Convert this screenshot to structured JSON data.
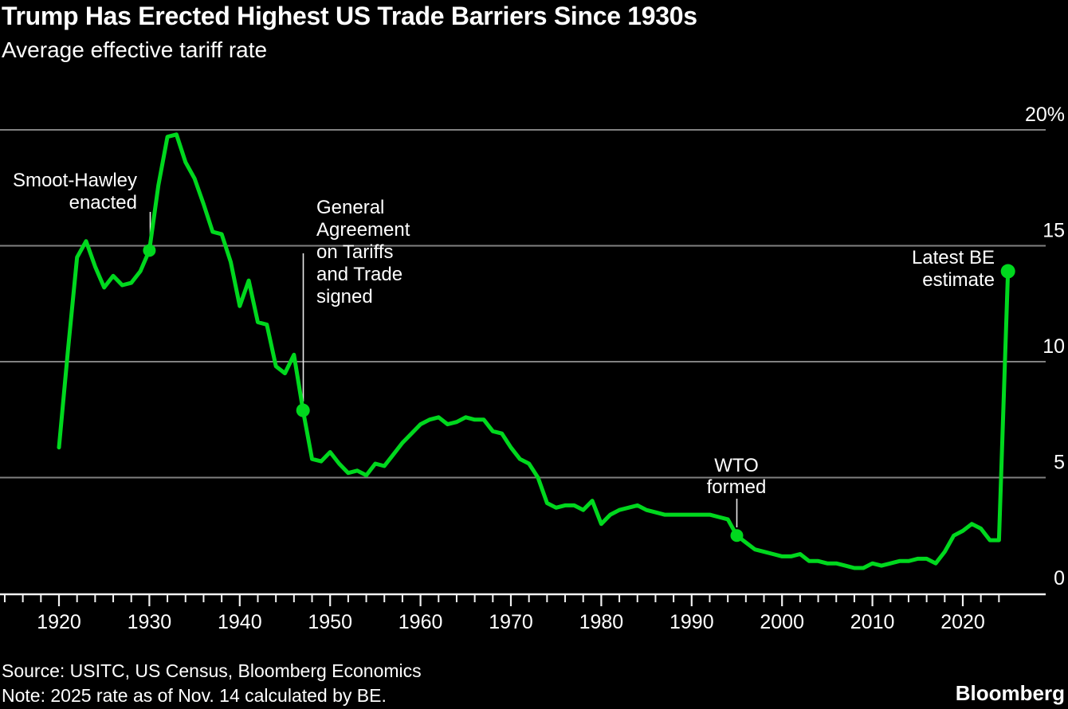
{
  "header": {
    "title": "Trump Has Erected Highest US Trade Barriers Since 1930s",
    "subtitle": "Average effective tariff rate"
  },
  "footer": {
    "source": "Source: USITC, US Census, Bloomberg Economics",
    "note": "Note: 2025 rate as of Nov. 14 calculated by BE.",
    "logo": "Bloomberg"
  },
  "chart_data": {
    "type": "line",
    "title": "Trump Has Erected Highest US Trade Barriers Since 1930s",
    "subtitle": "Average effective tariff rate",
    "xlabel": "",
    "ylabel": "Average effective tariff rate (%)",
    "ylim": [
      0,
      20
    ],
    "xlim": [
      1920,
      2025
    ],
    "grid": "horizontal",
    "legend": "none",
    "line_color": "#00d81e",
    "gridline_color": "#818181",
    "axis_color": "#f2f2f2",
    "background_color": "#000000",
    "x": [
      1920,
      1921,
      1922,
      1923,
      1924,
      1925,
      1926,
      1927,
      1928,
      1929,
      1930,
      1931,
      1932,
      1933,
      1934,
      1935,
      1936,
      1937,
      1938,
      1939,
      1940,
      1941,
      1942,
      1943,
      1944,
      1945,
      1946,
      1947,
      1948,
      1949,
      1950,
      1951,
      1952,
      1953,
      1954,
      1955,
      1956,
      1957,
      1958,
      1959,
      1960,
      1961,
      1962,
      1963,
      1964,
      1965,
      1966,
      1967,
      1968,
      1969,
      1970,
      1971,
      1972,
      1973,
      1974,
      1975,
      1976,
      1977,
      1978,
      1979,
      1980,
      1981,
      1982,
      1983,
      1984,
      1985,
      1986,
      1987,
      1988,
      1989,
      1990,
      1991,
      1992,
      1993,
      1994,
      1995,
      1996,
      1997,
      1998,
      1999,
      2000,
      2001,
      2002,
      2003,
      2004,
      2005,
      2006,
      2007,
      2008,
      2009,
      2010,
      2011,
      2012,
      2013,
      2014,
      2015,
      2016,
      2017,
      2018,
      2019,
      2020,
      2021,
      2022,
      2023,
      2024,
      2025
    ],
    "series": [
      {
        "name": "Average effective tariff rate",
        "values": [
          6.3,
          10.5,
          14.5,
          15.2,
          14.1,
          13.2,
          13.7,
          13.3,
          13.4,
          13.9,
          14.8,
          17.6,
          19.7,
          19.8,
          18.6,
          17.9,
          16.8,
          15.6,
          15.5,
          14.3,
          12.4,
          13.5,
          11.7,
          11.6,
          9.8,
          9.5,
          10.3,
          7.9,
          5.8,
          5.7,
          6.1,
          5.6,
          5.2,
          5.3,
          5.1,
          5.6,
          5.5,
          6.0,
          6.5,
          6.9,
          7.3,
          7.5,
          7.6,
          7.3,
          7.4,
          7.6,
          7.5,
          7.5,
          7.0,
          6.9,
          6.3,
          5.8,
          5.6,
          5.0,
          3.9,
          3.7,
          3.8,
          3.8,
          3.6,
          4.0,
          3.0,
          3.4,
          3.6,
          3.7,
          3.8,
          3.6,
          3.5,
          3.4,
          3.4,
          3.4,
          3.4,
          3.4,
          3.4,
          3.3,
          3.2,
          2.5,
          2.2,
          1.9,
          1.8,
          1.7,
          1.6,
          1.6,
          1.7,
          1.4,
          1.4,
          1.3,
          1.3,
          1.2,
          1.1,
          1.1,
          1.3,
          1.2,
          1.3,
          1.4,
          1.4,
          1.5,
          1.5,
          1.3,
          1.8,
          2.5,
          2.7,
          3.0,
          2.8,
          2.3,
          2.3,
          13.9
        ]
      }
    ],
    "y_axis": {
      "ticks": [
        {
          "value": 20,
          "label": "20%"
        },
        {
          "value": 15,
          "label": "15"
        },
        {
          "value": 10,
          "label": "10"
        },
        {
          "value": 5,
          "label": "5"
        },
        {
          "value": 0,
          "label": "0"
        }
      ]
    },
    "x_axis": {
      "major_ticks": [
        {
          "year": 1920,
          "label": "1920"
        },
        {
          "year": 1930,
          "label": "1930"
        },
        {
          "year": 1940,
          "label": "1940"
        },
        {
          "year": 1950,
          "label": "1950"
        },
        {
          "year": 1960,
          "label": "1960"
        },
        {
          "year": 1970,
          "label": "1970"
        },
        {
          "year": 1980,
          "label": "1980"
        },
        {
          "year": 1990,
          "label": "1990"
        },
        {
          "year": 2000,
          "label": "2000"
        },
        {
          "year": 2010,
          "label": "2010"
        },
        {
          "year": 2020,
          "label": "2020"
        }
      ],
      "minor_tick_step_years": 2,
      "minor_tick_range": [
        1914,
        2024
      ]
    },
    "annotations": [
      {
        "id": "smoot-hawley",
        "lines": [
          "Smoot-Hawley",
          "enacted"
        ],
        "year": 1930,
        "value": 14.8
      },
      {
        "id": "gatt",
        "lines": [
          "General",
          "Agreement",
          "on Tariffs",
          "and Trade",
          "signed"
        ],
        "year": 1947,
        "value": 7.9
      },
      {
        "id": "wto",
        "lines": [
          "WTO",
          "formed"
        ],
        "year": 1995,
        "value": 2.5
      },
      {
        "id": "latest-be",
        "lines": [
          "Latest BE",
          "estimate"
        ],
        "year": 2025,
        "value": 13.9
      }
    ]
  }
}
